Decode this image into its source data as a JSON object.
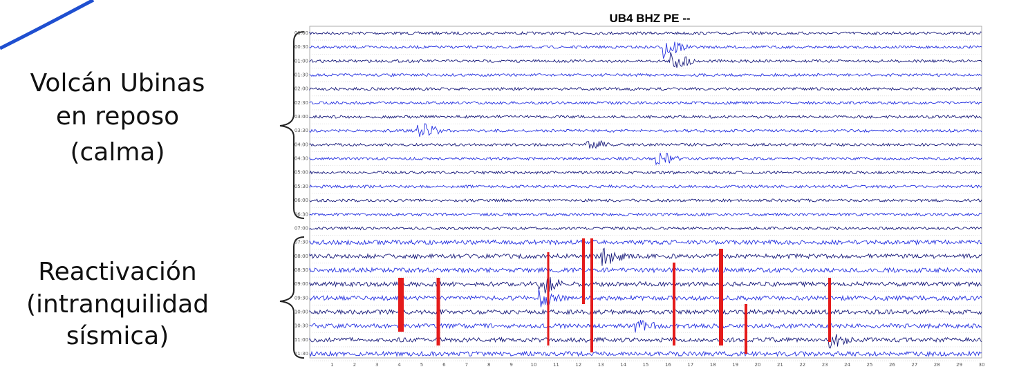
{
  "title": "UB4 BHZ PE --",
  "annotations": [
    {
      "lines": [
        "Volcán Ubinas",
        "en reposo",
        "(calma)"
      ]
    },
    {
      "lines": [
        "Reactivación",
        "(intranquilidad",
        "sísmica)"
      ]
    }
  ],
  "row_labels": [
    "00:00",
    "00:30",
    "01:00",
    "01:30",
    "02:00",
    "02:30",
    "03:00",
    "03:30",
    "04:00",
    "04:30",
    "05:00",
    "05:30",
    "06:00",
    "06:30",
    "07:00",
    "07:30",
    "08:00",
    "08:30",
    "09:00",
    "09:30",
    "10:00",
    "10:30",
    "11:00",
    "11:30"
  ],
  "x_labels": [
    "1",
    "2",
    "3",
    "4",
    "5",
    "6",
    "7",
    "8",
    "9",
    "10",
    "11",
    "12",
    "13",
    "14",
    "15",
    "16",
    "17",
    "18",
    "19",
    "20",
    "21",
    "22",
    "23",
    "24",
    "25",
    "26",
    "27",
    "28",
    "29",
    "30"
  ]
}
